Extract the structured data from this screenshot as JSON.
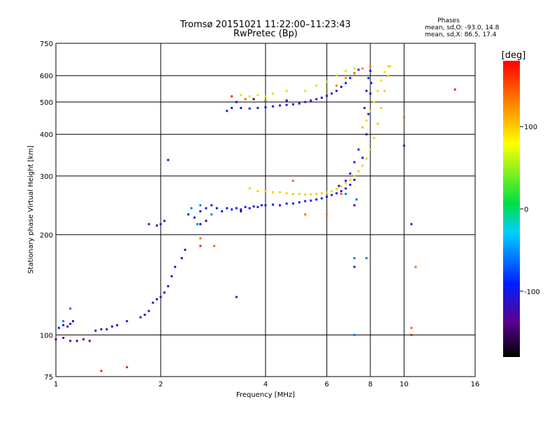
{
  "chart_data": {
    "type": "scatter",
    "title": "Tromsø 20151021 11:22:00–11:23:43",
    "subtitle": "RwPretec (Bp)",
    "phase_stats": {
      "heading": "Phases",
      "line_o": "mean, sd,O: -93.0, 14.8",
      "line_x": "mean, sd,X:  86.5, 17.4"
    },
    "xlabel": "Frequency [MHz]",
    "ylabel": "Stationary phase Virtual Height [km]",
    "x_scale": "log",
    "y_scale": "log",
    "xlim": [
      1,
      16
    ],
    "ylim": [
      75,
      750
    ],
    "x_ticks": [
      1,
      2,
      4,
      6,
      8,
      10,
      16
    ],
    "y_ticks": [
      75,
      100,
      200,
      300,
      400,
      500,
      600,
      750
    ],
    "grid": true,
    "colorbar": {
      "label": "[deg]",
      "range": [
        -180,
        180
      ],
      "ticks": [
        100,
        0,
        -100
      ]
    },
    "traces": [
      {
        "phase": -110,
        "points": [
          [
            1.02,
            105
          ],
          [
            1.05,
            107
          ],
          [
            1.08,
            106
          ],
          [
            1.1,
            108
          ],
          [
            1.12,
            110
          ],
          [
            1.3,
            103
          ],
          [
            1.35,
            104
          ],
          [
            1.4,
            104
          ],
          [
            1.45,
            106
          ],
          [
            1.5,
            107
          ],
          [
            1.6,
            110
          ],
          [
            1.75,
            113
          ],
          [
            1.8,
            115
          ],
          [
            1.85,
            118
          ],
          [
            1.9,
            125
          ],
          [
            1.95,
            128
          ],
          [
            2.0,
            130
          ],
          [
            2.05,
            134
          ],
          [
            2.1,
            140
          ],
          [
            2.15,
            150
          ],
          [
            2.2,
            160
          ],
          [
            2.3,
            170
          ],
          [
            2.35,
            180
          ],
          [
            1.85,
            215
          ],
          [
            1.95,
            213
          ],
          [
            2.0,
            215
          ],
          [
            2.05,
            220
          ],
          [
            2.1,
            335
          ]
        ]
      },
      {
        "phase": -140,
        "points": [
          [
            1.0,
            97
          ],
          [
            1.05,
            98
          ],
          [
            1.1,
            96
          ],
          [
            1.15,
            96
          ],
          [
            1.2,
            97
          ],
          [
            1.25,
            96
          ]
        ]
      },
      {
        "phase": -100,
        "points": [
          [
            2.4,
            230
          ],
          [
            2.5,
            225
          ],
          [
            2.6,
            235
          ],
          [
            2.7,
            240
          ],
          [
            2.8,
            245
          ],
          [
            2.9,
            240
          ],
          [
            3.0,
            235
          ],
          [
            3.1,
            240
          ],
          [
            3.2,
            238
          ],
          [
            3.3,
            240
          ],
          [
            3.4,
            238
          ],
          [
            3.5,
            242
          ],
          [
            3.6,
            240
          ],
          [
            3.7,
            243
          ],
          [
            3.8,
            242
          ],
          [
            3.9,
            245
          ],
          [
            4.0,
            245
          ],
          [
            4.2,
            246
          ],
          [
            4.4,
            245
          ],
          [
            4.6,
            248
          ],
          [
            4.8,
            248
          ],
          [
            5.0,
            250
          ],
          [
            5.2,
            252
          ],
          [
            5.4,
            253
          ],
          [
            5.6,
            255
          ],
          [
            5.8,
            257
          ],
          [
            6.0,
            260
          ],
          [
            6.2,
            263
          ],
          [
            6.4,
            266
          ],
          [
            6.6,
            270
          ],
          [
            6.8,
            275
          ],
          [
            7.0,
            282
          ],
          [
            7.2,
            292
          ],
          [
            7.4,
            310
          ],
          [
            7.6,
            340
          ],
          [
            7.8,
            400
          ],
          [
            7.9,
            460
          ],
          [
            8.0,
            530
          ],
          [
            8.05,
            570
          ]
        ]
      },
      {
        "phase": -95,
        "points": [
          [
            6.5,
            280
          ],
          [
            6.8,
            290
          ],
          [
            7.0,
            305
          ],
          [
            7.2,
            330
          ],
          [
            7.4,
            360
          ],
          [
            7.6,
            420
          ],
          [
            7.7,
            480
          ],
          [
            7.8,
            540
          ],
          [
            7.9,
            590
          ],
          [
            8.0,
            620
          ]
        ]
      },
      {
        "phase": -105,
        "points": [
          [
            3.1,
            470
          ],
          [
            3.2,
            480
          ],
          [
            3.4,
            480
          ],
          [
            3.6,
            478
          ],
          [
            3.8,
            480
          ],
          [
            4.0,
            482
          ],
          [
            4.2,
            485
          ],
          [
            4.4,
            488
          ],
          [
            4.6,
            490
          ],
          [
            4.8,
            492
          ],
          [
            5.0,
            495
          ],
          [
            5.2,
            500
          ],
          [
            5.4,
            505
          ],
          [
            5.6,
            510
          ],
          [
            5.8,
            515
          ],
          [
            6.0,
            522
          ],
          [
            6.2,
            530
          ],
          [
            6.4,
            540
          ],
          [
            6.6,
            555
          ],
          [
            6.8,
            570
          ],
          [
            7.0,
            590
          ],
          [
            7.2,
            610
          ],
          [
            7.4,
            625
          ]
        ]
      },
      {
        "phase": 60,
        "points": [
          [
            3.4,
            525
          ],
          [
            3.6,
            520
          ],
          [
            3.8,
            525
          ],
          [
            4.0,
            520
          ],
          [
            4.2,
            530
          ],
          [
            4.6,
            540
          ],
          [
            5.2,
            540
          ],
          [
            5.6,
            560
          ],
          [
            6.0,
            575
          ],
          [
            6.4,
            600
          ],
          [
            6.8,
            620
          ],
          [
            7.2,
            630
          ]
        ]
      },
      {
        "phase": 100,
        "points": [
          [
            3.6,
            275
          ],
          [
            3.8,
            270
          ],
          [
            4.0,
            270
          ],
          [
            4.2,
            268
          ],
          [
            4.4,
            268
          ],
          [
            4.6,
            266
          ],
          [
            4.8,
            265
          ],
          [
            5.0,
            265
          ],
          [
            5.2,
            264
          ],
          [
            5.4,
            264
          ],
          [
            5.6,
            265
          ],
          [
            5.8,
            266
          ],
          [
            6.0,
            268
          ],
          [
            6.2,
            270
          ],
          [
            6.4,
            274
          ],
          [
            6.6,
            279
          ],
          [
            6.8,
            285
          ],
          [
            7.0,
            292
          ],
          [
            7.2,
            300
          ],
          [
            7.4,
            310
          ],
          [
            7.6,
            322
          ],
          [
            7.8,
            338
          ],
          [
            8.0,
            360
          ],
          [
            8.2,
            390
          ],
          [
            8.4,
            430
          ],
          [
            8.6,
            480
          ],
          [
            8.8,
            540
          ],
          [
            9.0,
            600
          ],
          [
            9.1,
            640
          ]
        ]
      },
      {
        "phase": 95,
        "points": [
          [
            7.6,
            420
          ],
          [
            7.8,
            440
          ],
          [
            8.0,
            470
          ],
          [
            8.2,
            500
          ],
          [
            8.4,
            540
          ],
          [
            8.6,
            580
          ],
          [
            8.8,
            615
          ],
          [
            9.0,
            640
          ]
        ]
      },
      {
        "phase": 130,
        "points": [
          [
            6.0,
            540
          ],
          [
            6.4,
            560
          ],
          [
            6.8,
            590
          ],
          [
            7.2,
            610
          ],
          [
            7.6,
            630
          ],
          [
            8.0,
            640
          ]
        ]
      },
      {
        "phase": -150,
        "points": [
          [
            3.3,
            500
          ],
          [
            3.7,
            510
          ],
          [
            4.6,
            505
          ],
          [
            2.6,
            215
          ],
          [
            2.7,
            220
          ],
          [
            3.4,
            235
          ]
        ]
      },
      {
        "phase": -60,
        "points": [
          [
            2.45,
            240
          ],
          [
            2.6,
            245
          ],
          [
            2.55,
            215
          ],
          [
            2.8,
            230
          ],
          [
            7.2,
            100
          ],
          [
            7.2,
            170
          ],
          [
            7.8,
            170
          ],
          [
            1.1,
            120
          ],
          [
            1.05,
            110
          ],
          [
            7.3,
            255
          ],
          [
            6.8,
            265
          ]
        ]
      },
      {
        "phase": 140,
        "points": [
          [
            3.5,
            510
          ],
          [
            4.0,
            505
          ],
          [
            4.8,
            290
          ],
          [
            5.2,
            230
          ],
          [
            6.0,
            230
          ],
          [
            6.6,
            265
          ],
          [
            10.0,
            450
          ],
          [
            10.5,
            105
          ],
          [
            10.8,
            160
          ],
          [
            2.85,
            185
          ],
          [
            2.6,
            195
          ]
        ]
      },
      {
        "phase": 170,
        "points": [
          [
            2.6,
            185
          ],
          [
            3.2,
            520
          ],
          [
            14.0,
            545
          ],
          [
            10.5,
            100
          ],
          [
            1.6,
            80
          ],
          [
            1.35,
            78
          ]
        ]
      },
      {
        "phase": -120,
        "points": [
          [
            10.0,
            370
          ],
          [
            10.5,
            215
          ],
          [
            3.3,
            130
          ],
          [
            7.2,
            245
          ],
          [
            7.2,
            160
          ]
        ]
      }
    ]
  }
}
